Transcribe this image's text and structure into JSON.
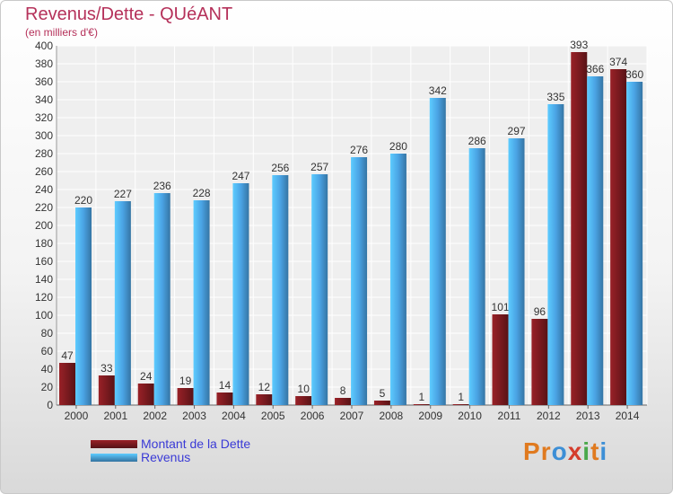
{
  "chart_data": {
    "type": "bar",
    "title": "Revenus/Dette - QUéANT",
    "subtitle": "(en milliers d'€)",
    "xlabel": "",
    "ylabel": "",
    "ylim": [
      0,
      400
    ],
    "ytick_step": 20,
    "yticks": [
      "0",
      "20",
      "40",
      "60",
      "80",
      "100",
      "120",
      "140",
      "160",
      "180",
      "200",
      "220",
      "240",
      "260",
      "280",
      "300",
      "320",
      "340",
      "360",
      "380",
      "400"
    ],
    "grid": true,
    "legend_position": "bottom-left",
    "categories": [
      "2000",
      "2001",
      "2002",
      "2003",
      "2004",
      "2005",
      "2006",
      "2007",
      "2008",
      "2009",
      "2010",
      "2011",
      "2012",
      "2013",
      "2014"
    ],
    "series": [
      {
        "name": "Montant de la Dette",
        "color": "#7a1a1f",
        "values": [
          47,
          33,
          24,
          19,
          14,
          12,
          10,
          8,
          5,
          1,
          1,
          101,
          96,
          393,
          374
        ],
        "value_labels": [
          "47",
          "33",
          "24",
          "19",
          "14",
          "12",
          "10",
          "8",
          "5",
          "1",
          "1",
          "101",
          "96",
          "393",
          "374"
        ]
      },
      {
        "name": "Revenus",
        "color": "#4aa3e4",
        "values": [
          220,
          227,
          236,
          228,
          247,
          256,
          257,
          276,
          280,
          342,
          286,
          297,
          335,
          366,
          360
        ],
        "value_labels": [
          "220",
          "227",
          "236",
          "228",
          "247",
          "256",
          "257",
          "276",
          "280",
          "342",
          "286",
          "297",
          "335",
          "366",
          "360"
        ]
      }
    ]
  },
  "brand": {
    "text": "Proxiti",
    "letters": [
      "P",
      "r",
      "o",
      "x",
      "i",
      "t",
      "i"
    ],
    "colors": [
      "#e07a1f",
      "#e07a1f",
      "#3d8fd6",
      "#d43c2c",
      "#4aa84a",
      "#e07a1f",
      "#3d8fd6"
    ]
  }
}
